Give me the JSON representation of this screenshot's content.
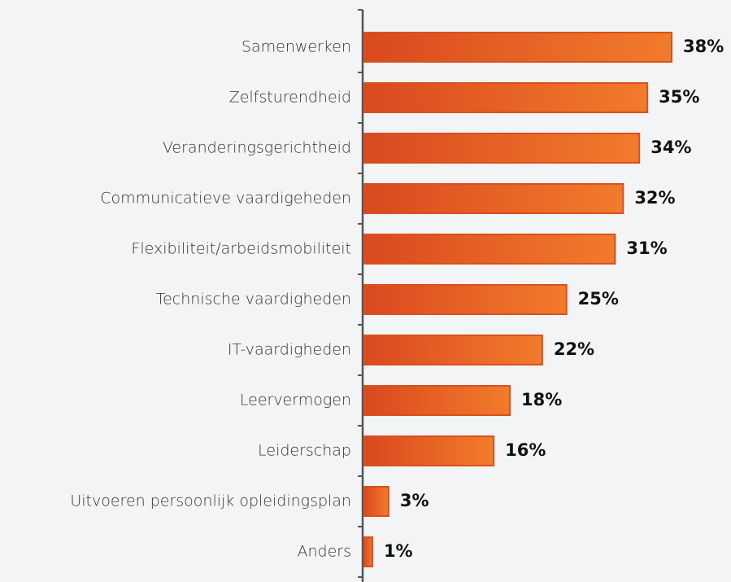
{
  "chart_data": {
    "type": "barh",
    "categories": [
      "Samenwerken",
      "Zelfsturendheid",
      "Veranderingsgerichtheid",
      "Communicatieve vaardigeheden",
      "Flexibiliteit/arbeidsmobiliteit",
      "Technische vaardigheden",
      "IT-vaardigheden",
      "Leervermogen",
      "Leiderschap",
      "Uitvoeren persoonlijk opleidingsplan",
      "Anders"
    ],
    "values": [
      38,
      35,
      34,
      32,
      31,
      25,
      22,
      18,
      16,
      3,
      1
    ],
    "value_labels": [
      "38%",
      "35%",
      "34%",
      "32%",
      "31%",
      "25%",
      "22%",
      "18%",
      "16%",
      "3%",
      "1%"
    ],
    "color": "#e85d24"
  }
}
